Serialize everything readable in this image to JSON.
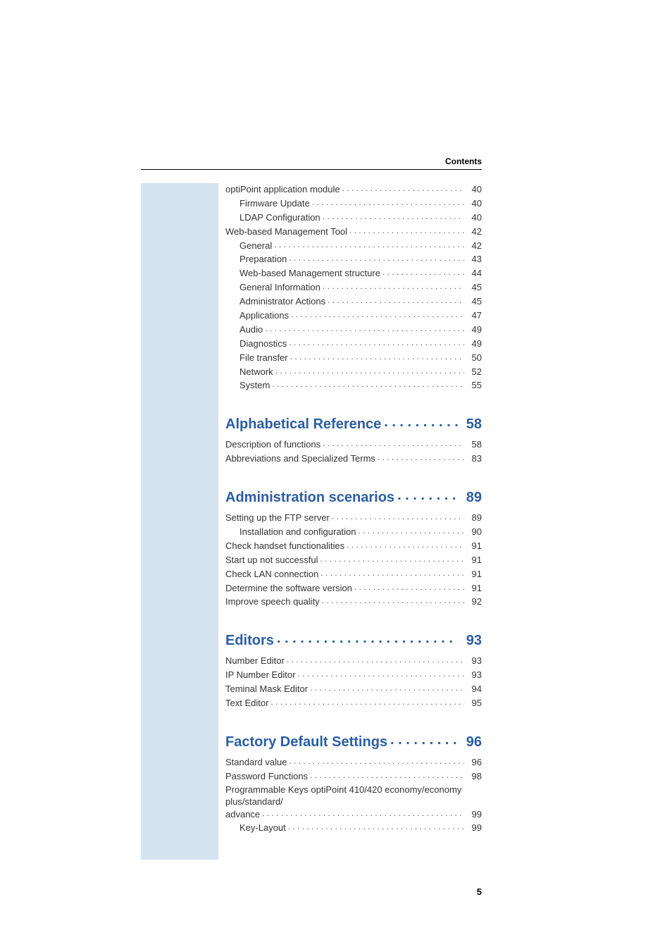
{
  "header": {
    "label": "Contents"
  },
  "page_number": "5",
  "colors": {
    "heading_color": "#2a5ea3",
    "sidebar_bg": "#d5e2f0",
    "text_color": "#333333"
  },
  "typography": {
    "body_fontsize_pt": 10,
    "heading_fontsize_pt": 15
  },
  "top_entries": [
    {
      "label": "optiPoint application module",
      "page": "40",
      "indent": 0
    },
    {
      "label": "Firmware Update",
      "page": "40",
      "indent": 1
    },
    {
      "label": "LDAP Configuration",
      "page": "40",
      "indent": 1
    },
    {
      "label": "Web-based Management Tool",
      "page": "42",
      "indent": 0
    },
    {
      "label": "General",
      "page": "42",
      "indent": 1
    },
    {
      "label": "Preparation",
      "page": "43",
      "indent": 1
    },
    {
      "label": "Web-based Management structure",
      "page": "44",
      "indent": 1
    },
    {
      "label": "General Information",
      "page": "45",
      "indent": 1
    },
    {
      "label": "Administrator Actions",
      "page": "45",
      "indent": 1
    },
    {
      "label": "Applications",
      "page": "47",
      "indent": 1
    },
    {
      "label": "Audio",
      "page": "49",
      "indent": 1
    },
    {
      "label": "Diagnostics",
      "page": "49",
      "indent": 1
    },
    {
      "label": "File transfer",
      "page": "50",
      "indent": 1
    },
    {
      "label": "Network",
      "page": "52",
      "indent": 1
    },
    {
      "label": "System",
      "page": "55",
      "indent": 1
    }
  ],
  "sections": [
    {
      "title": "Alphabetical Reference",
      "page": "58",
      "entries": [
        {
          "label": "Description of functions",
          "page": "58",
          "indent": 0
        },
        {
          "label": "Abbreviations and Specialized Terms",
          "page": "83",
          "indent": 0
        }
      ]
    },
    {
      "title": "Administration scenarios",
      "page": "89",
      "entries": [
        {
          "label": "Setting up the FTP server",
          "page": "89",
          "indent": 0
        },
        {
          "label": "Installation and configuration",
          "page": "90",
          "indent": 1
        },
        {
          "label": "Check handset functionalities",
          "page": "91",
          "indent": 0
        },
        {
          "label": "Start up not successful",
          "page": "91",
          "indent": 0
        },
        {
          "label": "Check LAN connection",
          "page": "91",
          "indent": 0
        },
        {
          "label": "Determine the software version",
          "page": "91",
          "indent": 0
        },
        {
          "label": "Improve speech quality",
          "page": "92",
          "indent": 0
        }
      ]
    },
    {
      "title": "Editors",
      "page": "93",
      "entries": [
        {
          "label": "Number Editor",
          "page": "93",
          "indent": 0
        },
        {
          "label": "IP Number Editor",
          "page": "93",
          "indent": 0
        },
        {
          "label": "Teminal Mask Editor",
          "page": "94",
          "indent": 0
        },
        {
          "label": "Text Editor",
          "page": "95",
          "indent": 0
        }
      ]
    },
    {
      "title": "Factory Default Settings",
      "page": "96",
      "entries": [
        {
          "label": "Standard value",
          "page": "96",
          "indent": 0
        },
        {
          "label": "Password Functions",
          "page": "98",
          "indent": 0
        },
        {
          "wrap": true,
          "line1": "Programmable Keys optiPoint 410/420 economy/economy plus/standard/",
          "label": "advance",
          "page": "99",
          "indent": 0
        },
        {
          "label": "Key-Layout",
          "page": "99",
          "indent": 1
        }
      ]
    }
  ]
}
